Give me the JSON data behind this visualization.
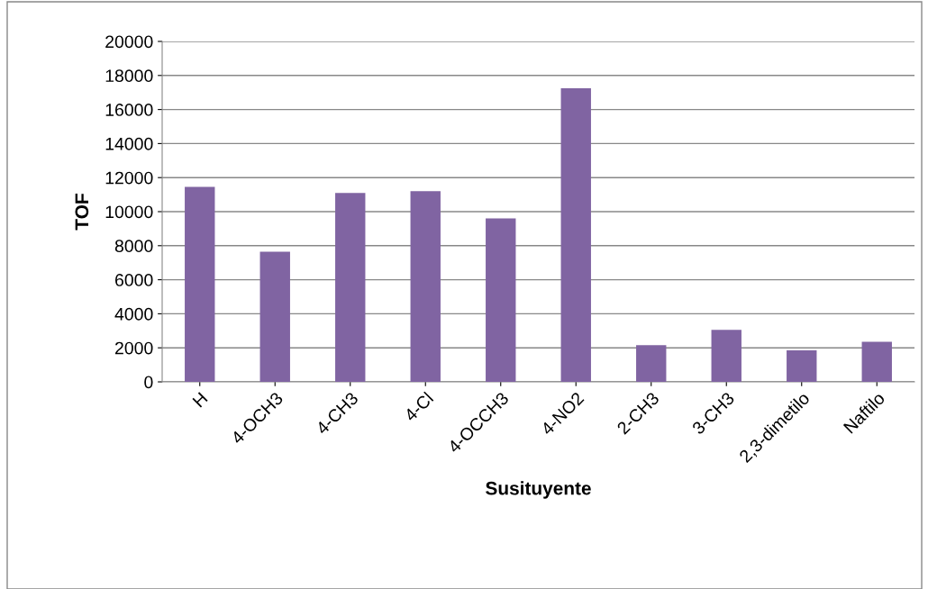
{
  "chart_data": {
    "type": "bar",
    "xlabel": "Susituyente",
    "ylabel": "TOF",
    "categories": [
      "H",
      "4-OCH3",
      "4-CH3",
      "4-Cl",
      "4-OCCH3",
      "4-NO2",
      "2-CH3",
      "3-CH3",
      "2,3-dimetilo",
      "Naftilo"
    ],
    "values": [
      11450,
      7650,
      11100,
      11200,
      9600,
      17250,
      2150,
      3050,
      1850,
      2350
    ],
    "color": "#8064a2",
    "ylim": [
      0,
      20000
    ],
    "yticks": [
      0,
      2000,
      4000,
      6000,
      8000,
      10000,
      12000,
      14000,
      16000,
      18000,
      20000
    ],
    "grid": "y",
    "legend": false
  }
}
